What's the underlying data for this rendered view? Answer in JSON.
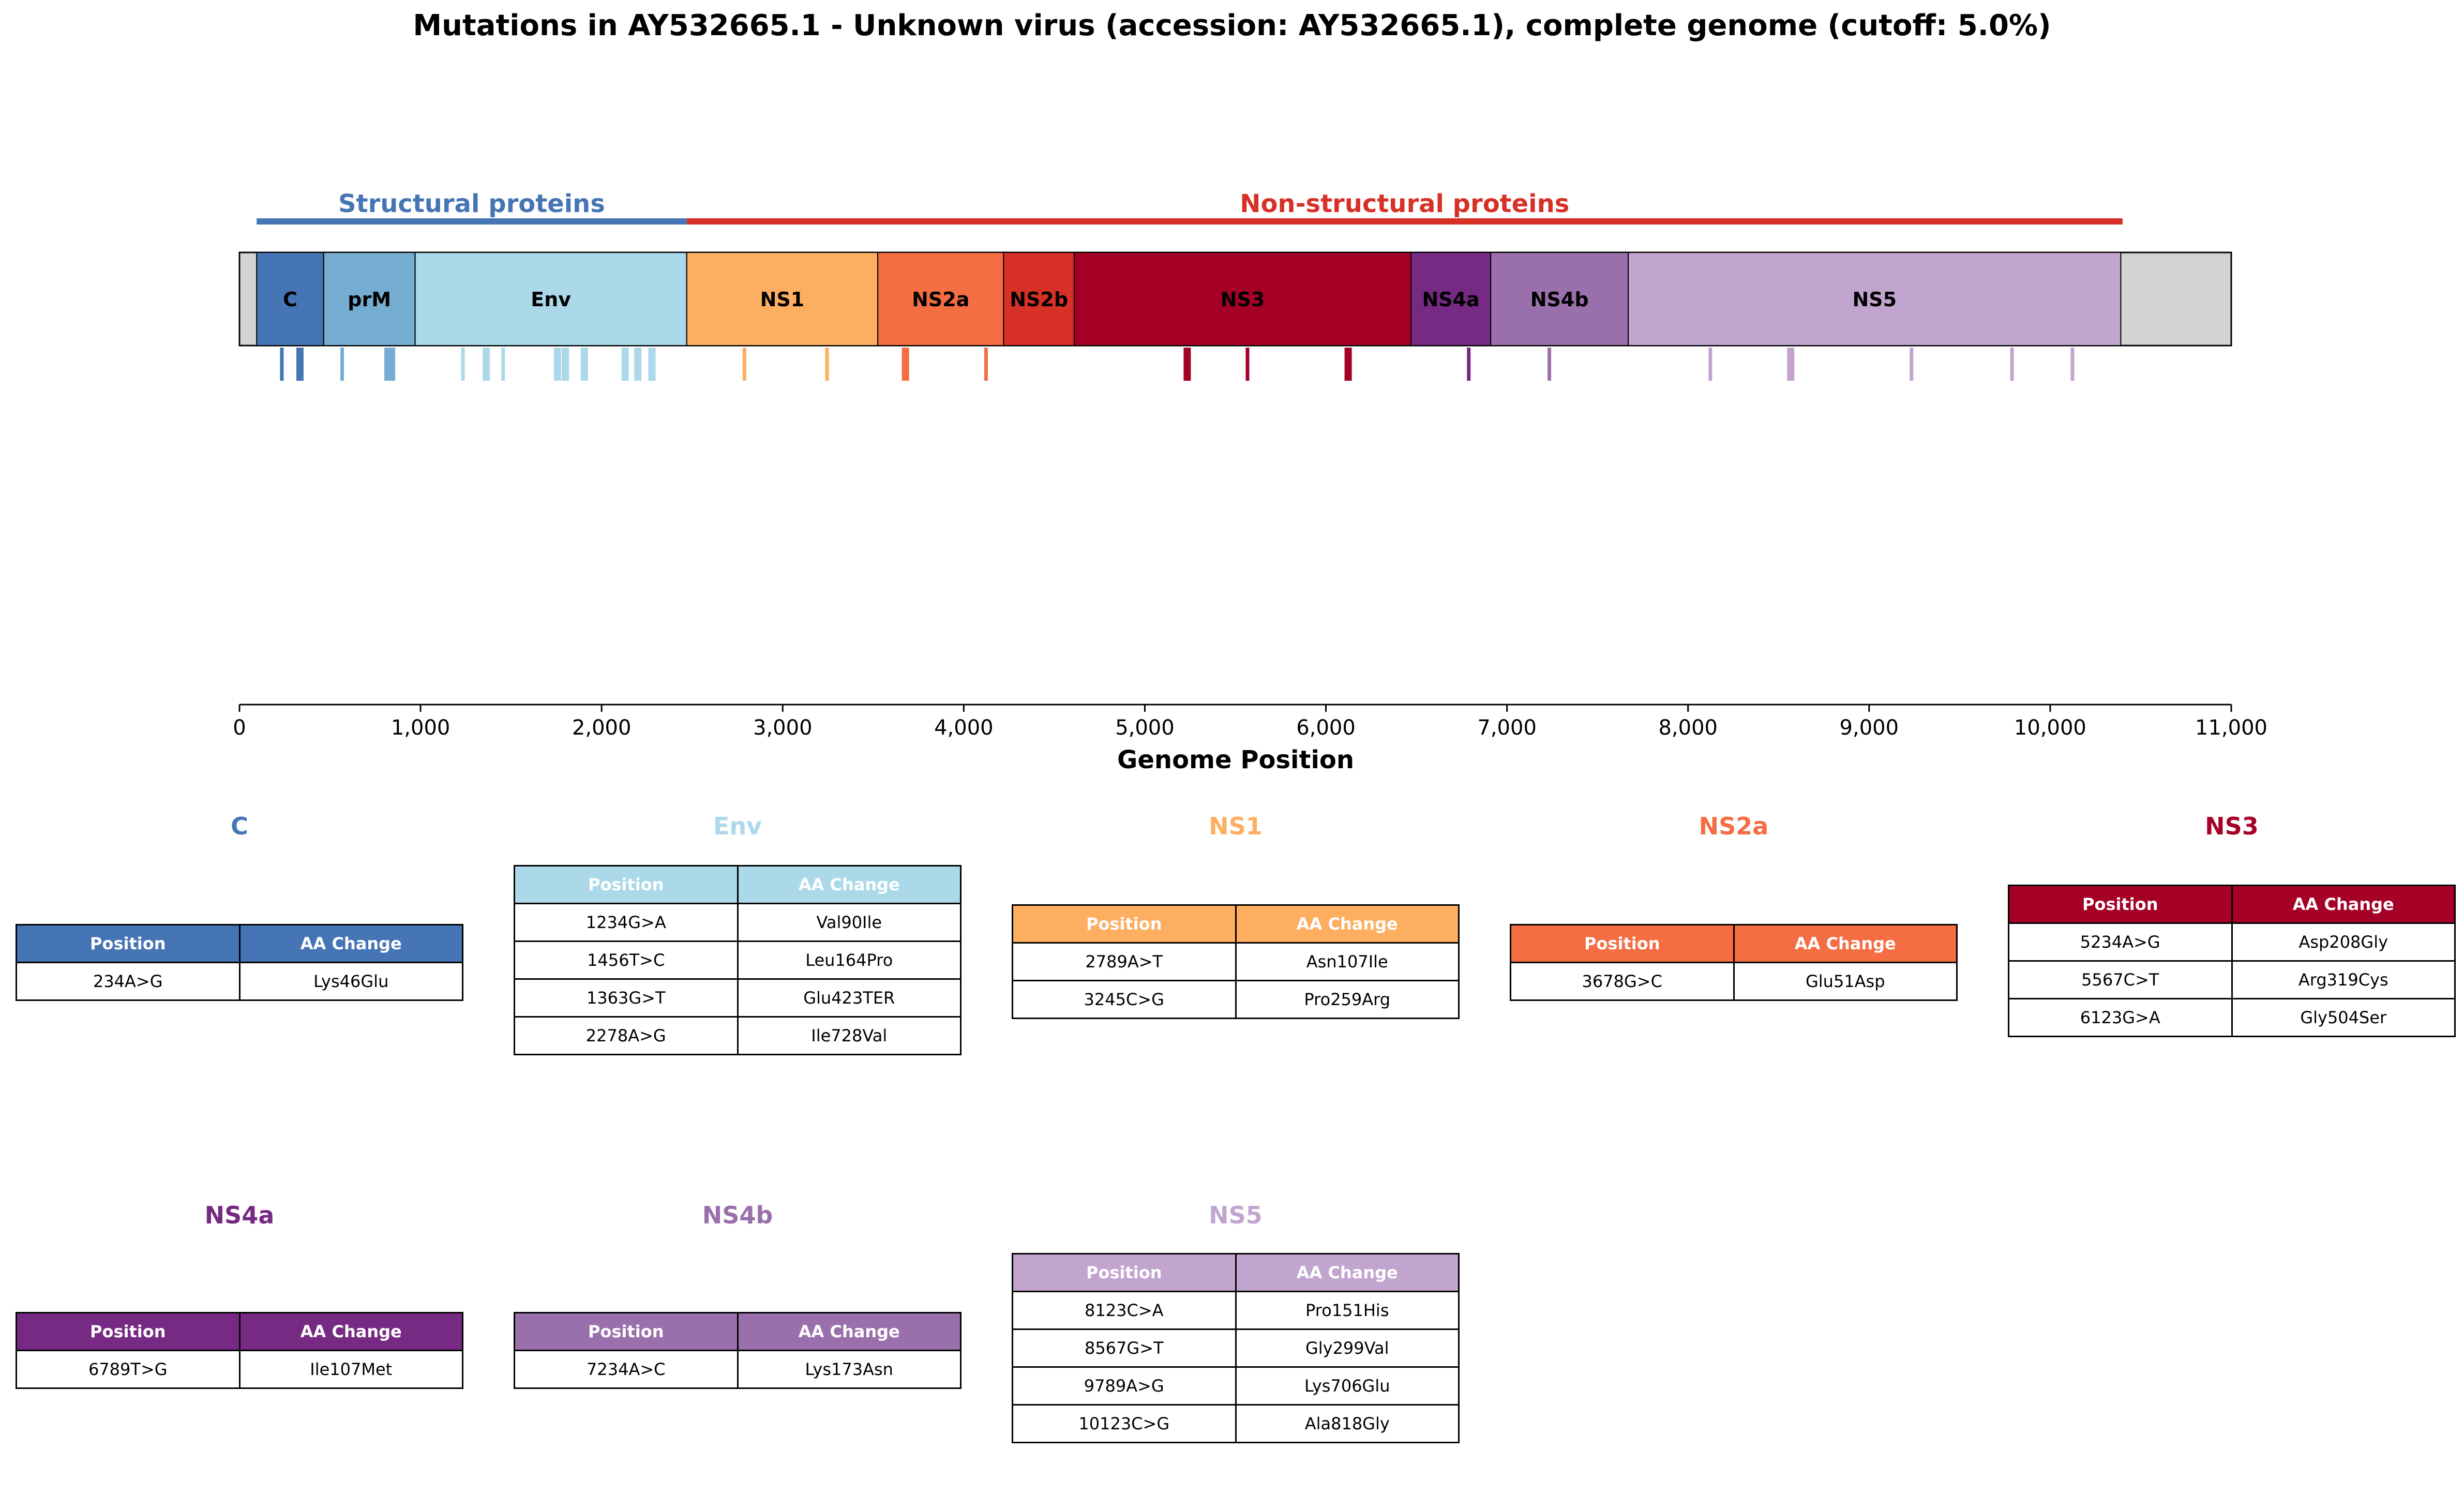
{
  "chart_data": {
    "type": "genome_map",
    "title": "Mutations in AY532665.1 - Unknown virus (accession: AY532665.1), complete genome (cutoff: 5.0%)",
    "xlabel": "Genome Position",
    "xlim": [
      0,
      11000
    ],
    "xticks": [
      0,
      1000,
      2000,
      3000,
      4000,
      5000,
      6000,
      7000,
      8000,
      9000,
      10000,
      11000
    ],
    "xtick_labels": [
      "0",
      "1,000",
      "2,000",
      "3,000",
      "4,000",
      "5,000",
      "6,000",
      "7,000",
      "8,000",
      "9,000",
      "10,000",
      "11,000"
    ],
    "genome_length": 11000,
    "region_groups": [
      {
        "name": "Structural proteins",
        "start": 95,
        "end": 2470,
        "color": "#4575b4"
      },
      {
        "name": "Non-structural proteins",
        "start": 2470,
        "end": 10400,
        "color": "#d73027"
      }
    ],
    "genes": [
      {
        "name": "C",
        "start": 95,
        "end": 465,
        "color": "#4575b4"
      },
      {
        "name": "prM",
        "start": 465,
        "end": 970,
        "color": "#74add1"
      },
      {
        "name": "Env",
        "start": 970,
        "end": 2470,
        "color": "#abd9e9"
      },
      {
        "name": "NS1",
        "start": 2470,
        "end": 3525,
        "color": "#fdae61"
      },
      {
        "name": "NS2a",
        "start": 3525,
        "end": 4220,
        "color": "#f46d43"
      },
      {
        "name": "NS2b",
        "start": 4220,
        "end": 4610,
        "color": "#d73027"
      },
      {
        "name": "NS3",
        "start": 4610,
        "end": 6470,
        "color": "#a50026"
      },
      {
        "name": "NS4a",
        "start": 6470,
        "end": 6910,
        "color": "#762a83"
      },
      {
        "name": "NS4b",
        "start": 6910,
        "end": 7670,
        "color": "#9970ab"
      },
      {
        "name": "NS5",
        "start": 7670,
        "end": 10390,
        "color": "#c2a5cf"
      }
    ],
    "mutation_marks": [
      {
        "position": 234,
        "color": "#4575b4",
        "width": "thin"
      },
      {
        "position": 334,
        "color": "#4575b4",
        "width": "thick"
      },
      {
        "position": 567,
        "color": "#74add1",
        "width": "thin"
      },
      {
        "position": 820,
        "color": "#74add1",
        "width": "thick"
      },
      {
        "position": 840,
        "color": "#74add1",
        "width": "thick"
      },
      {
        "position": 1234,
        "color": "#abd9e9",
        "width": "thin"
      },
      {
        "position": 1363,
        "color": "#abd9e9",
        "width": "thick"
      },
      {
        "position": 1456,
        "color": "#abd9e9",
        "width": "thin"
      },
      {
        "position": 1756,
        "color": "#abd9e9",
        "width": "thick"
      },
      {
        "position": 1800,
        "color": "#abd9e9",
        "width": "thick"
      },
      {
        "position": 1905,
        "color": "#abd9e9",
        "width": "thick"
      },
      {
        "position": 2130,
        "color": "#abd9e9",
        "width": "thick"
      },
      {
        "position": 2200,
        "color": "#abd9e9",
        "width": "thick"
      },
      {
        "position": 2278,
        "color": "#abd9e9",
        "width": "thick"
      },
      {
        "position": 2789,
        "color": "#fdae61",
        "width": "thin"
      },
      {
        "position": 3245,
        "color": "#fdae61",
        "width": "thin"
      },
      {
        "position": 3678,
        "color": "#f46d43",
        "width": "thick"
      },
      {
        "position": 4123,
        "color": "#f46d43",
        "width": "thin"
      },
      {
        "position": 5234,
        "color": "#a50026",
        "width": "thick"
      },
      {
        "position": 5567,
        "color": "#a50026",
        "width": "thin"
      },
      {
        "position": 6123,
        "color": "#a50026",
        "width": "thick"
      },
      {
        "position": 6789,
        "color": "#762a83",
        "width": "thin"
      },
      {
        "position": 7234,
        "color": "#9970ab",
        "width": "thin"
      },
      {
        "position": 8123,
        "color": "#c2a5cf",
        "width": "thin"
      },
      {
        "position": 8567,
        "color": "#c2a5cf",
        "width": "thick"
      },
      {
        "position": 9234,
        "color": "#c2a5cf",
        "width": "thin"
      },
      {
        "position": 9789,
        "color": "#c2a5cf",
        "width": "thin"
      },
      {
        "position": 10123,
        "color": "#c2a5cf",
        "width": "thin"
      }
    ]
  },
  "tables": [
    {
      "gene": "C",
      "color": "#4575b4",
      "header": [
        "Position",
        "AA Change"
      ],
      "rows": [
        [
          "234A>G",
          "Lys46Glu"
        ]
      ]
    },
    {
      "gene": "Env",
      "color": "#abd9e9",
      "header": [
        "Position",
        "AA Change"
      ],
      "rows": [
        [
          "1234G>A",
          "Val90Ile"
        ],
        [
          "1456T>C",
          "Leu164Pro"
        ],
        [
          "1363G>T",
          "Glu423TER"
        ],
        [
          "2278A>G",
          "Ile728Val"
        ]
      ]
    },
    {
      "gene": "NS1",
      "color": "#fdae61",
      "header": [
        "Position",
        "AA Change"
      ],
      "rows": [
        [
          "2789A>T",
          "Asn107Ile"
        ],
        [
          "3245C>G",
          "Pro259Arg"
        ]
      ]
    },
    {
      "gene": "NS2a",
      "color": "#f46d43",
      "header": [
        "Position",
        "AA Change"
      ],
      "rows": [
        [
          "3678G>C",
          "Glu51Asp"
        ]
      ]
    },
    {
      "gene": "NS3",
      "color": "#a50026",
      "header": [
        "Position",
        "AA Change"
      ],
      "rows": [
        [
          "5234A>G",
          "Asp208Gly"
        ],
        [
          "5567C>T",
          "Arg319Cys"
        ],
        [
          "6123G>A",
          "Gly504Ser"
        ]
      ]
    },
    {
      "gene": "NS4a",
      "color": "#762a83",
      "header": [
        "Position",
        "AA Change"
      ],
      "rows": [
        [
          "6789T>G",
          "Ile107Met"
        ]
      ]
    },
    {
      "gene": "NS4b",
      "color": "#9970ab",
      "header": [
        "Position",
        "AA Change"
      ],
      "rows": [
        [
          "7234A>C",
          "Lys173Asn"
        ]
      ]
    },
    {
      "gene": "NS5",
      "color": "#c2a5cf",
      "header": [
        "Position",
        "AA Change"
      ],
      "rows": [
        [
          "8123C>A",
          "Pro151His"
        ],
        [
          "8567G>T",
          "Gly299Val"
        ],
        [
          "9789A>G",
          "Lys706Glu"
        ],
        [
          "10123C>G",
          "Ala818Gly"
        ]
      ]
    }
  ]
}
